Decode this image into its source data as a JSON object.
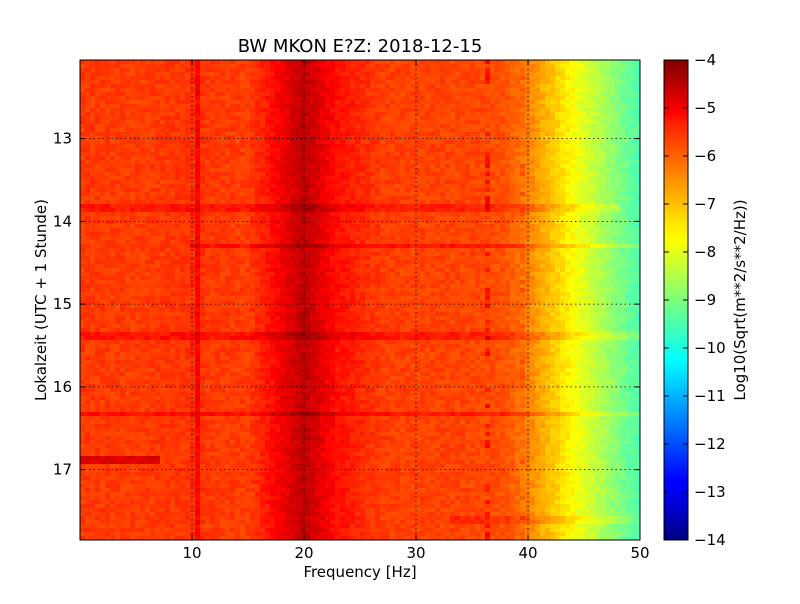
{
  "chart_data": {
    "type": "heatmap",
    "title": "BW MKON E?Z: 2018-12-15",
    "xlabel": "Frequency [Hz]",
    "ylabel": "Lokalzeit (UTC + 1 Stunde)",
    "xlim": [
      0,
      50
    ],
    "ylim": [
      12.05,
      17.85
    ],
    "y_axis_direction": "downward",
    "grid": true,
    "x_ticks": [
      10,
      20,
      30,
      40,
      50
    ],
    "x_tick_labels": [
      "10",
      "20",
      "30",
      "40",
      "50"
    ],
    "y_ticks": [
      13,
      14,
      15,
      16,
      17
    ],
    "y_tick_labels": [
      "13",
      "14",
      "15",
      "16",
      "17"
    ],
    "colorbar": {
      "label": "Log10(Sqrt(m**2/s**2/Hz))",
      "range": [
        -14,
        -4
      ],
      "ticks": [
        -4,
        -5,
        -6,
        -7,
        -8,
        -9,
        -10,
        -11,
        -12,
        -13,
        -14
      ],
      "tick_labels": [
        "−4",
        "−5",
        "−6",
        "−7",
        "−8",
        "−9",
        "−10",
        "−11",
        "−12",
        "−13",
        "−14"
      ],
      "colormap": "jet"
    },
    "spectrum_profile": {
      "frequency_hz": [
        0,
        5,
        10,
        10.5,
        11,
        15,
        17,
        18.5,
        20,
        21.5,
        23,
        27,
        30,
        33,
        36,
        38,
        40,
        41,
        42,
        43,
        44,
        45,
        46,
        47,
        48,
        49,
        50
      ],
      "log10_amplitude": [
        -5.8,
        -5.85,
        -5.75,
        -5.25,
        -5.8,
        -5.85,
        -5.4,
        -5.0,
        -4.6,
        -5.0,
        -5.4,
        -5.85,
        -5.9,
        -5.9,
        -5.95,
        -6.05,
        -6.5,
        -6.85,
        -7.15,
        -7.45,
        -7.75,
        -8.05,
        -8.35,
        -8.65,
        -8.95,
        -9.25,
        -9.5
      ]
    },
    "time_features": [
      {
        "time_h": 13.85,
        "f_from_hz": 0,
        "f_to_hz": 48,
        "strength": 0.35
      },
      {
        "time_h": 14.3,
        "f_from_hz": 10,
        "f_to_hz": 50,
        "strength": 0.45
      },
      {
        "time_h": 15.38,
        "f_from_hz": 0,
        "f_to_hz": 50,
        "strength": 0.4
      },
      {
        "time_h": 16.33,
        "f_from_hz": 0,
        "f_to_hz": 50,
        "strength": 0.45
      },
      {
        "time_h": 16.88,
        "f_from_hz": 0,
        "f_to_hz": 7,
        "strength": 0.9
      },
      {
        "time_h": 17.6,
        "f_from_hz": 33,
        "f_to_hz": 50,
        "strength": 0.3
      }
    ],
    "narrowband_features": [
      {
        "frequency_hz": 36.5,
        "strength": 0.6
      },
      {
        "frequency_hz": 39.5,
        "strength": 0.3
      }
    ]
  }
}
